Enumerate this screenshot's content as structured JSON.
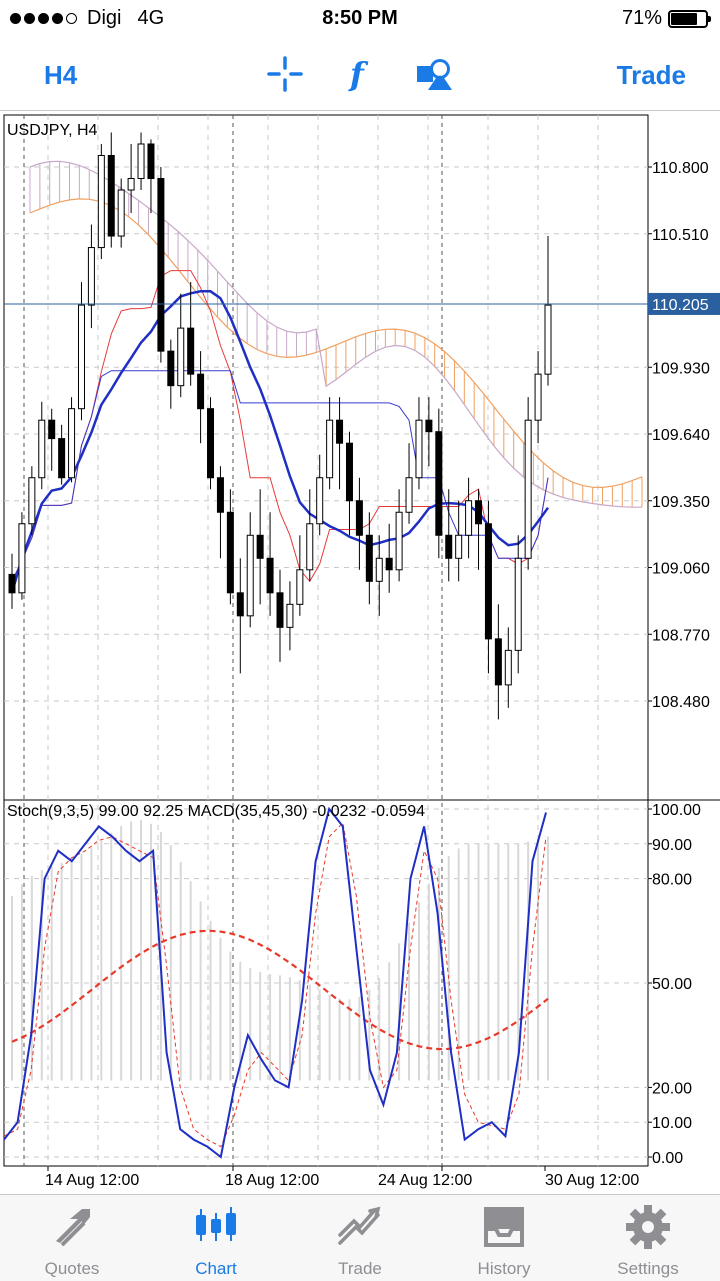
{
  "status_bar": {
    "carrier": "Digi",
    "network": "4G",
    "time": "8:50 PM",
    "battery": "71%",
    "signal_bars": 4
  },
  "toolbar": {
    "timeframe": "H4",
    "trade_label": "Trade",
    "icons": [
      "crosshair-icon",
      "indicators-icon",
      "objects-icon"
    ]
  },
  "chart": {
    "title": "USDJPY, H4",
    "indicator_caption": "Stoch(9,3,5) 99.00 92.25 MACD(35,45,30) -0.0232 -0.0594",
    "current_price": "110.205",
    "price_labels": [
      "110.800",
      "110.510",
      "109.930",
      "109.640",
      "109.350",
      "109.060",
      "108.770",
      "108.480"
    ],
    "osc_labels": [
      "100.00",
      "90.00",
      "80.00",
      "50.00",
      "20.00",
      "10.00",
      "0.00"
    ],
    "time_labels": [
      "14 Aug 12:00",
      "18 Aug 12:00",
      "24 Aug 12:00",
      "30 Aug 12:00"
    ],
    "colors": {
      "bull": "#ffffff",
      "bear": "#000000",
      "ma": "#1f2fc4",
      "kijun": "#3a3ad0",
      "tenkan": "#e83a3a",
      "kumo_up": "#f0a060",
      "kumo_down": "#c8a8c8",
      "stoch_main": "#1f2fc4",
      "stoch_signal": "#e83a2a",
      "macd_hist": "#d8d8d8",
      "price_tag": "#2a5fa0"
    }
  },
  "chart_data": {
    "type": "candlestick",
    "title": "USDJPY, H4",
    "price_axis_ticks": [
      110.8,
      110.51,
      110.205,
      109.93,
      109.64,
      109.35,
      109.06,
      108.77,
      108.48
    ],
    "oscillator_axis_ticks": [
      100,
      90,
      80,
      50,
      20,
      10,
      0
    ],
    "time_axis_ticks": [
      "14 Aug 12:00",
      "18 Aug 12:00",
      "24 Aug 12:00",
      "30 Aug 12:00"
    ],
    "current_price": 110.205,
    "candles": [
      [
        109.03,
        108.95,
        109.12,
        108.88
      ],
      [
        108.95,
        109.25,
        109.3,
        108.92
      ],
      [
        109.25,
        109.45,
        109.5,
        109.2
      ],
      [
        109.45,
        109.7,
        109.78,
        109.4
      ],
      [
        109.7,
        109.62,
        109.75,
        109.48
      ],
      [
        109.62,
        109.45,
        109.68,
        109.42
      ],
      [
        109.45,
        109.75,
        109.8,
        109.43
      ],
      [
        109.75,
        110.2,
        110.3,
        109.7
      ],
      [
        110.2,
        110.45,
        110.55,
        110.1
      ],
      [
        110.45,
        110.85,
        110.9,
        110.4
      ],
      [
        110.85,
        110.5,
        110.95,
        110.45
      ],
      [
        110.5,
        110.7,
        110.75,
        110.45
      ],
      [
        110.7,
        110.75,
        110.9,
        110.6
      ],
      [
        110.75,
        110.9,
        110.95,
        110.7
      ],
      [
        110.9,
        110.75,
        110.92,
        110.6
      ],
      [
        110.75,
        110.0,
        110.8,
        109.95
      ],
      [
        110.0,
        109.85,
        110.05,
        109.75
      ],
      [
        109.85,
        110.1,
        110.25,
        109.8
      ],
      [
        110.1,
        109.9,
        110.3,
        109.85
      ],
      [
        109.9,
        109.75,
        110.0,
        109.6
      ],
      [
        109.75,
        109.45,
        109.8,
        109.4
      ],
      [
        109.45,
        109.3,
        109.5,
        109.1
      ],
      [
        109.3,
        108.95,
        109.4,
        108.9
      ],
      [
        108.95,
        108.85,
        109.1,
        108.6
      ],
      [
        108.85,
        109.2,
        109.3,
        108.8
      ],
      [
        109.2,
        109.1,
        109.4,
        108.9
      ],
      [
        109.1,
        108.95,
        109.3,
        108.85
      ],
      [
        108.95,
        108.8,
        109.05,
        108.65
      ],
      [
        108.8,
        108.9,
        109.0,
        108.7
      ],
      [
        108.9,
        109.05,
        109.2,
        108.85
      ],
      [
        109.05,
        109.25,
        109.4,
        109.0
      ],
      [
        109.25,
        109.45,
        109.55,
        109.2
      ],
      [
        109.45,
        109.7,
        109.8,
        109.4
      ],
      [
        109.7,
        109.6,
        109.8,
        109.4
      ],
      [
        109.6,
        109.35,
        109.65,
        109.2
      ],
      [
        109.35,
        109.2,
        109.45,
        109.05
      ],
      [
        109.2,
        109.0,
        109.3,
        108.9
      ],
      [
        109.0,
        109.1,
        109.2,
        108.85
      ],
      [
        109.1,
        109.05,
        109.25,
        108.95
      ],
      [
        109.05,
        109.3,
        109.4,
        109.0
      ],
      [
        109.3,
        109.45,
        109.6,
        109.25
      ],
      [
        109.45,
        109.7,
        109.8,
        109.4
      ],
      [
        109.7,
        109.65,
        109.8,
        109.5
      ],
      [
        109.65,
        109.2,
        109.75,
        109.1
      ],
      [
        109.2,
        109.1,
        109.4,
        109.0
      ],
      [
        109.1,
        109.2,
        109.35,
        109.0
      ],
      [
        109.2,
        109.35,
        109.45,
        109.1
      ],
      [
        109.35,
        109.25,
        109.4,
        109.05
      ],
      [
        109.25,
        108.75,
        109.35,
        108.6
      ],
      [
        108.75,
        108.55,
        108.9,
        108.4
      ],
      [
        108.55,
        108.7,
        108.8,
        108.45
      ],
      [
        108.7,
        109.1,
        109.2,
        108.6
      ],
      [
        109.1,
        109.7,
        109.8,
        109.05
      ],
      [
        109.7,
        109.9,
        110.0,
        109.6
      ],
      [
        109.9,
        110.2,
        110.5,
        109.85
      ]
    ],
    "stochastic_main": [
      5,
      10,
      35,
      80,
      88,
      85,
      90,
      95,
      92,
      88,
      85,
      88,
      30,
      8,
      5,
      3,
      0,
      20,
      35,
      28,
      22,
      20,
      45,
      85,
      100,
      95,
      60,
      25,
      15,
      30,
      80,
      95,
      70,
      30,
      5,
      8,
      10,
      6,
      30,
      85,
      99
    ],
    "stochastic_signal": [
      6,
      8,
      25,
      60,
      82,
      86,
      88,
      91,
      92,
      90,
      88,
      86,
      55,
      20,
      8,
      5,
      3,
      12,
      25,
      30,
      26,
      22,
      35,
      70,
      92,
      96,
      75,
      40,
      20,
      25,
      60,
      88,
      80,
      45,
      18,
      10,
      9,
      8,
      18,
      60,
      92
    ]
  }
}
